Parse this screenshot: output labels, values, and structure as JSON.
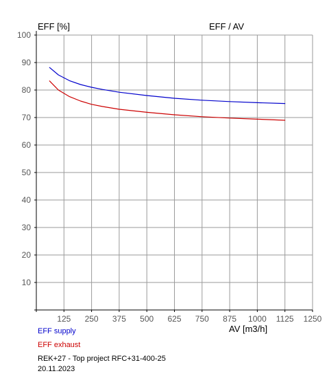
{
  "chart_data": {
    "type": "line",
    "title": "EFF / AV",
    "ylabel": "EFF [%]",
    "xlabel": "AV [m3/h]",
    "xlim": [
      0,
      1250
    ],
    "ylim": [
      0,
      100
    ],
    "x_ticks": [
      "125",
      "250",
      "375",
      "500",
      "625",
      "750",
      "875",
      "1000",
      "1125",
      "1250"
    ],
    "y_ticks": [
      "10",
      "20",
      "30",
      "40",
      "50",
      "60",
      "70",
      "80",
      "90",
      "100"
    ],
    "grid": true,
    "legend_position": "bottom-left",
    "series": [
      {
        "name": "EFF supply",
        "color": "#0000cc",
        "x": [
          60,
          100,
          150,
          200,
          250,
          300,
          375,
          500,
          625,
          750,
          875,
          1000,
          1125
        ],
        "y": [
          88.2,
          85.5,
          83.4,
          82.0,
          81.0,
          80.2,
          79.2,
          78.0,
          77.0,
          76.3,
          75.8,
          75.4,
          75.1
        ]
      },
      {
        "name": "EFF exhaust",
        "color": "#cc0000",
        "x": [
          60,
          100,
          150,
          200,
          250,
          300,
          375,
          500,
          625,
          750,
          875,
          1000,
          1125
        ],
        "y": [
          83.3,
          80.0,
          77.6,
          76.0,
          74.8,
          74.0,
          73.0,
          71.9,
          71.0,
          70.3,
          69.8,
          69.4,
          69.0
        ]
      }
    ]
  },
  "header": {
    "y_unit_label": "EFF [%]",
    "title": "EFF / AV"
  },
  "x_axis": {
    "label": "AV [m3/h]"
  },
  "legend": {
    "supply": "EFF supply",
    "exhaust": "EFF exhaust",
    "supply_color": "#0000cc",
    "exhaust_color": "#cc0000"
  },
  "footer": {
    "project": "REK+27   - Top project      RFC+31-400-25",
    "date": "20.11.2023"
  }
}
